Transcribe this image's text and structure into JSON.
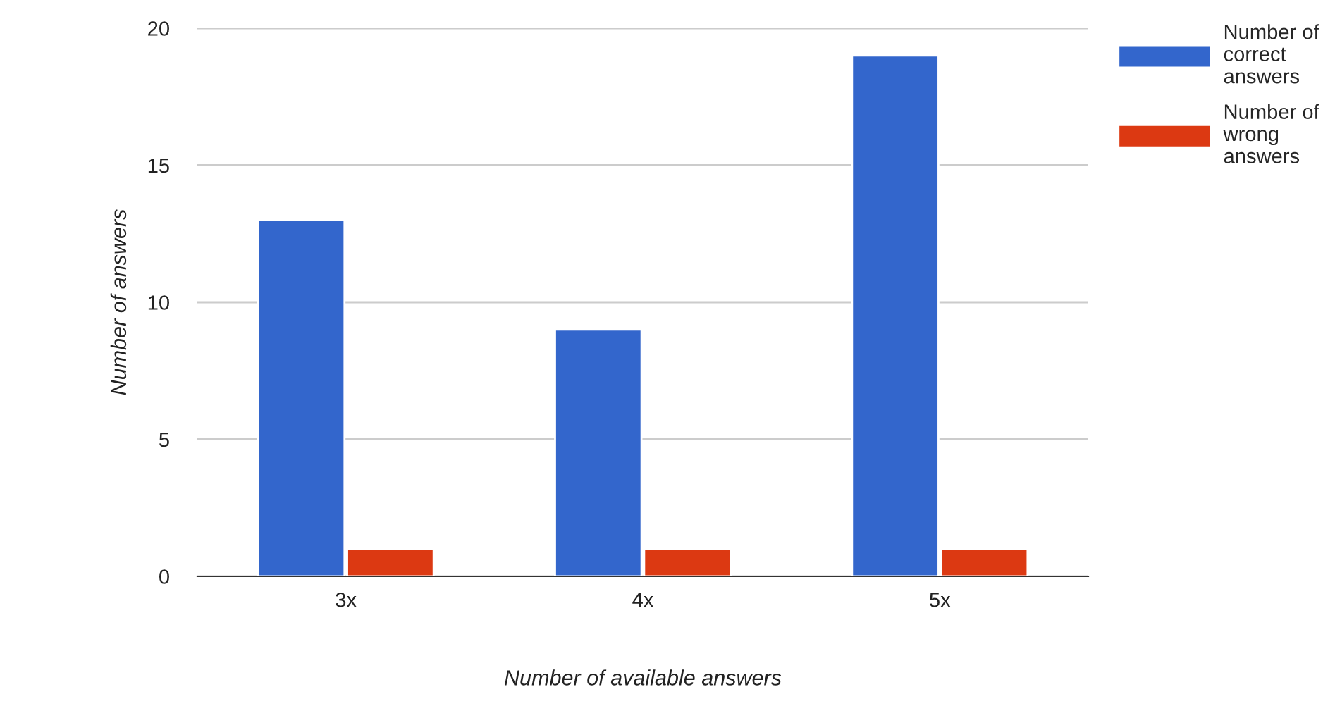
{
  "chart_data": {
    "type": "bar",
    "xlabel": "Number of available answers",
    "ylabel": "Number of answers",
    "categories": [
      "3x",
      "4x",
      "5x"
    ],
    "series": [
      {
        "name": "Number of\ncorrect\nanswers",
        "color": "#3366cc",
        "values": [
          13,
          9,
          19
        ]
      },
      {
        "name": "Number of\nwrong\nanswers",
        "color": "#dc3912",
        "values": [
          1,
          1,
          1
        ]
      }
    ],
    "ylim": [
      0,
      20
    ],
    "yticks": [
      0,
      5,
      10,
      15,
      20
    ],
    "grid": "y",
    "legend": "top right"
  }
}
